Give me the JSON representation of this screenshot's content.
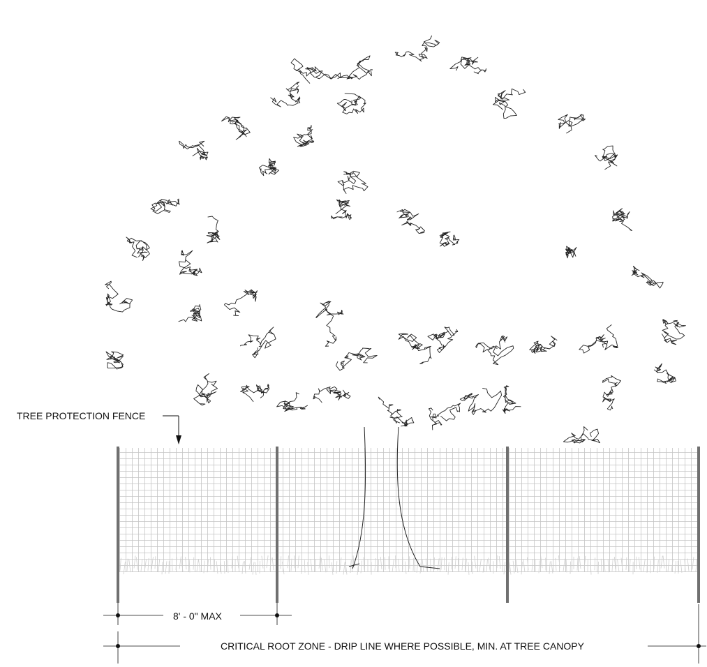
{
  "labels": {
    "fence_callout": "TREE PROTECTION FENCE",
    "post_spacing": "8' - 0\" MAX",
    "root_zone": "CRITICAL ROOT ZONE - DRIP LINE WHERE POSSIBLE, MIN. AT TREE CANOPY"
  },
  "colors": {
    "line": "#111111",
    "post": "#6f6f6f",
    "mesh": "#bdbdbd"
  }
}
